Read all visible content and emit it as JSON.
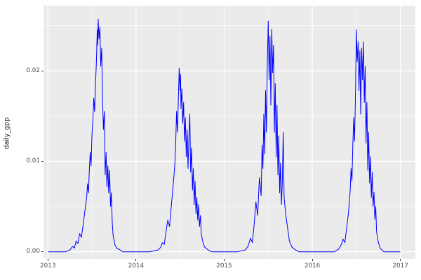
{
  "figure": {
    "ylabel": "daily_gpp",
    "xlabel": "",
    "title": "",
    "x_ticks": [
      "2013",
      "2014",
      "2015",
      "2016",
      "2017"
    ],
    "y_ticks": [
      "0.00",
      "0.01",
      "0.02"
    ]
  },
  "chart_data": {
    "type": "line",
    "title": "",
    "xlabel": "",
    "ylabel": "daily_gpp",
    "xlim": [
      2012.95,
      2017.17
    ],
    "ylim": [
      -0.0008,
      0.0272
    ],
    "x_major_ticks": [
      2013,
      2014,
      2015,
      2016,
      2017
    ],
    "y_major_ticks": [
      0.0,
      0.01,
      0.02
    ],
    "x_minor_ticks": [
      2013.5,
      2014.5,
      2015.5,
      2016.5
    ],
    "y_minor_ticks": [
      0.005,
      0.015,
      0.025
    ],
    "panel_background": "#EBEBEB",
    "grid_color": "#FFFFFF",
    "line_color": "#0000FF",
    "tick_label_color": "#4D4D4D",
    "legend": "none",
    "grid": "on",
    "series": [
      {
        "name": "daily_gpp",
        "points": [
          [
            2013.0,
            0
          ],
          [
            2013.1,
            0
          ],
          [
            2013.2,
            0
          ],
          [
            2013.25,
            0.0002
          ],
          [
            2013.28,
            0.0006
          ],
          [
            2013.3,
            0.0004
          ],
          [
            2013.32,
            0.0012
          ],
          [
            2013.34,
            0.0009
          ],
          [
            2013.36,
            0.002
          ],
          [
            2013.38,
            0.0016
          ],
          [
            2013.4,
            0.003
          ],
          [
            2013.42,
            0.0045
          ],
          [
            2013.44,
            0.006
          ],
          [
            2013.45,
            0.0075
          ],
          [
            2013.46,
            0.0065
          ],
          [
            2013.47,
            0.009
          ],
          [
            2013.48,
            0.011
          ],
          [
            2013.49,
            0.0095
          ],
          [
            2013.5,
            0.013
          ],
          [
            2013.51,
            0.0145
          ],
          [
            2013.52,
            0.017
          ],
          [
            2013.53,
            0.0155
          ],
          [
            2013.54,
            0.0185
          ],
          [
            2013.55,
            0.021
          ],
          [
            2013.56,
            0.0245
          ],
          [
            2013.565,
            0.0228
          ],
          [
            2013.57,
            0.0257
          ],
          [
            2013.58,
            0.0235
          ],
          [
            2013.59,
            0.0248
          ],
          [
            2013.6,
            0.0205
          ],
          [
            2013.61,
            0.0225
          ],
          [
            2013.62,
            0.017
          ],
          [
            2013.63,
            0.0135
          ],
          [
            2013.64,
            0.0155
          ],
          [
            2013.65,
            0.0085
          ],
          [
            2013.66,
            0.011
          ],
          [
            2013.67,
            0.0072
          ],
          [
            2013.68,
            0.0095
          ],
          [
            2013.69,
            0.0065
          ],
          [
            2013.7,
            0.009
          ],
          [
            2013.71,
            0.005
          ],
          [
            2013.72,
            0.0065
          ],
          [
            2013.73,
            0.0032
          ],
          [
            2013.74,
            0.0018
          ],
          [
            2013.76,
            0.0008
          ],
          [
            2013.78,
            0.0004
          ],
          [
            2013.82,
            0.0002
          ],
          [
            2013.85,
            0
          ],
          [
            2013.95,
            0
          ],
          [
            2014.05,
            0
          ],
          [
            2014.15,
            0
          ],
          [
            2014.25,
            0.0002
          ],
          [
            2014.28,
            0.0005
          ],
          [
            2014.3,
            0.001
          ],
          [
            2014.32,
            0.0008
          ],
          [
            2014.34,
            0.0022
          ],
          [
            2014.36,
            0.0035
          ],
          [
            2014.38,
            0.0028
          ],
          [
            2014.4,
            0.005
          ],
          [
            2014.42,
            0.0072
          ],
          [
            2014.44,
            0.0095
          ],
          [
            2014.45,
            0.012
          ],
          [
            2014.46,
            0.0155
          ],
          [
            2014.47,
            0.0132
          ],
          [
            2014.48,
            0.0168
          ],
          [
            2014.49,
            0.0203
          ],
          [
            2014.5,
            0.0178
          ],
          [
            2014.505,
            0.0196
          ],
          [
            2014.51,
            0.0158
          ],
          [
            2014.52,
            0.018
          ],
          [
            2014.53,
            0.0142
          ],
          [
            2014.54,
            0.0165
          ],
          [
            2014.55,
            0.0122
          ],
          [
            2014.56,
            0.0148
          ],
          [
            2014.57,
            0.0105
          ],
          [
            2014.58,
            0.0135
          ],
          [
            2014.59,
            0.0092
          ],
          [
            2014.6,
            0.0125
          ],
          [
            2014.61,
            0.0152
          ],
          [
            2014.62,
            0.0088
          ],
          [
            2014.63,
            0.0115
          ],
          [
            2014.64,
            0.0068
          ],
          [
            2014.65,
            0.0092
          ],
          [
            2014.66,
            0.0052
          ],
          [
            2014.67,
            0.0078
          ],
          [
            2014.68,
            0.0042
          ],
          [
            2014.69,
            0.006
          ],
          [
            2014.7,
            0.0035
          ],
          [
            2014.71,
            0.0052
          ],
          [
            2014.72,
            0.0028
          ],
          [
            2014.73,
            0.004
          ],
          [
            2014.74,
            0.002
          ],
          [
            2014.76,
            0.001
          ],
          [
            2014.78,
            0.0005
          ],
          [
            2014.82,
            0.0002
          ],
          [
            2014.86,
            0
          ],
          [
            2014.95,
            0
          ],
          [
            2015.05,
            0
          ],
          [
            2015.15,
            0
          ],
          [
            2015.24,
            0.0002
          ],
          [
            2015.27,
            0.0006
          ],
          [
            2015.3,
            0.0015
          ],
          [
            2015.32,
            0.001
          ],
          [
            2015.34,
            0.003
          ],
          [
            2015.36,
            0.0055
          ],
          [
            2015.38,
            0.004
          ],
          [
            2015.4,
            0.0082
          ],
          [
            2015.42,
            0.0062
          ],
          [
            2015.43,
            0.0118
          ],
          [
            2015.44,
            0.0092
          ],
          [
            2015.45,
            0.0152
          ],
          [
            2015.46,
            0.0108
          ],
          [
            2015.47,
            0.0178
          ],
          [
            2015.48,
            0.0132
          ],
          [
            2015.49,
            0.021
          ],
          [
            2015.5,
            0.0255
          ],
          [
            2015.51,
            0.019
          ],
          [
            2015.52,
            0.0238
          ],
          [
            2015.53,
            0.0162
          ],
          [
            2015.54,
            0.0246
          ],
          [
            2015.55,
            0.0198
          ],
          [
            2015.56,
            0.0228
          ],
          [
            2015.57,
            0.0132
          ],
          [
            2015.58,
            0.0186
          ],
          [
            2015.59,
            0.0105
          ],
          [
            2015.6,
            0.0162
          ],
          [
            2015.61,
            0.0085
          ],
          [
            2015.62,
            0.0128
          ],
          [
            2015.63,
            0.0065
          ],
          [
            2015.64,
            0.0098
          ],
          [
            2015.65,
            0.0052
          ],
          [
            2015.66,
            0.0078
          ],
          [
            2015.67,
            0.0132
          ],
          [
            2015.68,
            0.006
          ],
          [
            2015.7,
            0.004
          ],
          [
            2015.72,
            0.0026
          ],
          [
            2015.74,
            0.0012
          ],
          [
            2015.77,
            0.0005
          ],
          [
            2015.81,
            0.0002
          ],
          [
            2015.85,
            0
          ],
          [
            2015.95,
            0
          ],
          [
            2016.05,
            0
          ],
          [
            2016.15,
            0
          ],
          [
            2016.25,
            0
          ],
          [
            2016.3,
            0.0003
          ],
          [
            2016.33,
            0.0008
          ],
          [
            2016.35,
            0.0014
          ],
          [
            2016.37,
            0.001
          ],
          [
            2016.39,
            0.0026
          ],
          [
            2016.41,
            0.0042
          ],
          [
            2016.43,
            0.0068
          ],
          [
            2016.44,
            0.0092
          ],
          [
            2016.45,
            0.0078
          ],
          [
            2016.46,
            0.0118
          ],
          [
            2016.47,
            0.0148
          ],
          [
            2016.48,
            0.0122
          ],
          [
            2016.49,
            0.0172
          ],
          [
            2016.5,
            0.0245
          ],
          [
            2016.51,
            0.021
          ],
          [
            2016.52,
            0.0232
          ],
          [
            2016.53,
            0.0178
          ],
          [
            2016.54,
            0.0222
          ],
          [
            2016.55,
            0.0152
          ],
          [
            2016.56,
            0.0225
          ],
          [
            2016.57,
            0.019
          ],
          [
            2016.58,
            0.0232
          ],
          [
            2016.59,
            0.0165
          ],
          [
            2016.6,
            0.0205
          ],
          [
            2016.61,
            0.012
          ],
          [
            2016.62,
            0.0165
          ],
          [
            2016.63,
            0.009
          ],
          [
            2016.64,
            0.0132
          ],
          [
            2016.65,
            0.0076
          ],
          [
            2016.66,
            0.0105
          ],
          [
            2016.67,
            0.006
          ],
          [
            2016.68,
            0.0088
          ],
          [
            2016.69,
            0.005
          ],
          [
            2016.7,
            0.0066
          ],
          [
            2016.71,
            0.0036
          ],
          [
            2016.72,
            0.005
          ],
          [
            2016.73,
            0.0022
          ],
          [
            2016.75,
            0.001
          ],
          [
            2016.77,
            0.0004
          ],
          [
            2016.81,
            0
          ],
          [
            2016.9,
            0
          ],
          [
            2017.0,
            0
          ]
        ]
      }
    ]
  }
}
